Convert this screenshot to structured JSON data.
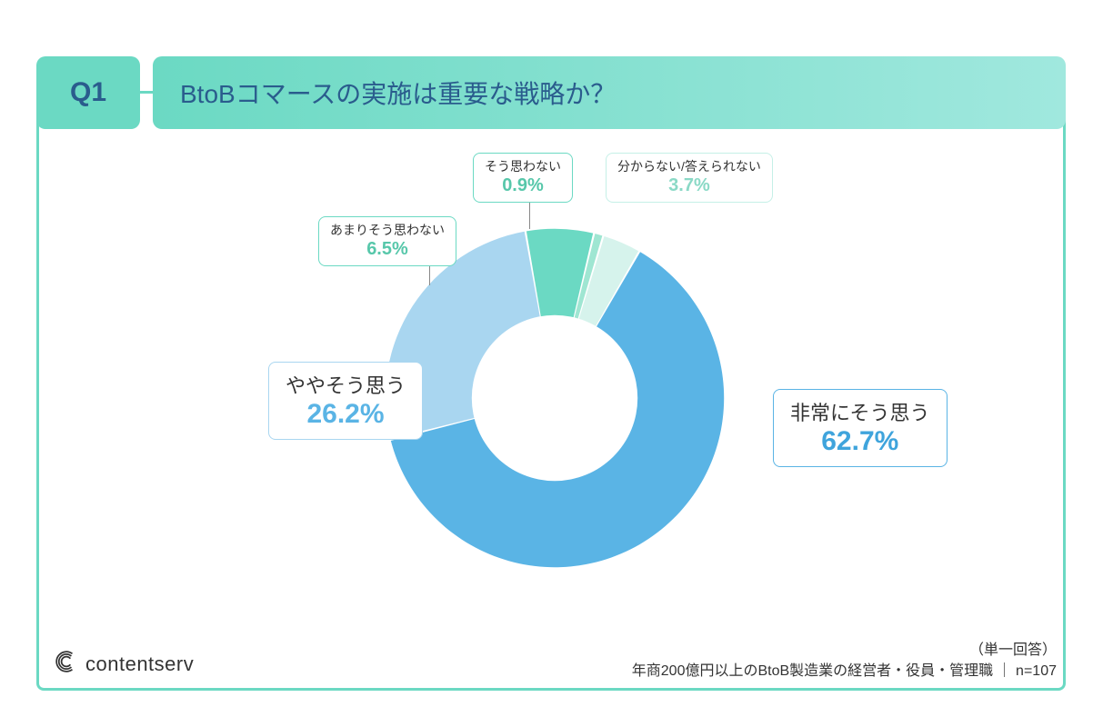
{
  "question_number": "Q1",
  "title": "BtoBコマースの実施は重要な戦略か？",
  "logo_text": "contentserv",
  "footnote_line1": "（単一回答）",
  "footnote_line2": "年商200億円以上のBtoB製造業の経営者・役員・管理職 ｜ n=107",
  "chart": {
    "type": "donut",
    "inner_radius_pct": 45,
    "outer_radius_pct": 100,
    "background_color": "#ffffff",
    "frame_border_color": "#6bd9c3",
    "start_angle_deg": -60,
    "slices": [
      {
        "label": "非常にそう思う",
        "value": 62.7,
        "color": "#5ab4e5",
        "label_border": "#5ab4e5",
        "label_value_color": "#3fa4dc",
        "size": "big",
        "pos": "lbl-very"
      },
      {
        "label": "ややそう思う",
        "value": 26.2,
        "color": "#a9d6f0",
        "label_border": "#a9d6f0",
        "label_value_color": "#5ab4e5",
        "size": "big",
        "pos": "lbl-somewhat"
      },
      {
        "label": "あまりそう思わない",
        "value": 6.5,
        "color": "#6bd9c3",
        "label_border": "#6bd9c3",
        "label_value_color": "#57c7aa",
        "size": "small",
        "pos": "lbl-notreally"
      },
      {
        "label": "そう思わない",
        "value": 0.9,
        "color": "#9fe6d2",
        "label_border": "#6bd9c3",
        "label_value_color": "#57c7aa",
        "size": "small",
        "pos": "lbl-notatall"
      },
      {
        "label": "分からない/答えられない",
        "value": 3.7,
        "color": "#d6f3ec",
        "label_border": "#c5f0e7",
        "label_value_color": "#8ad9c6",
        "size": "small",
        "pos": "lbl-dontknow"
      }
    ]
  }
}
